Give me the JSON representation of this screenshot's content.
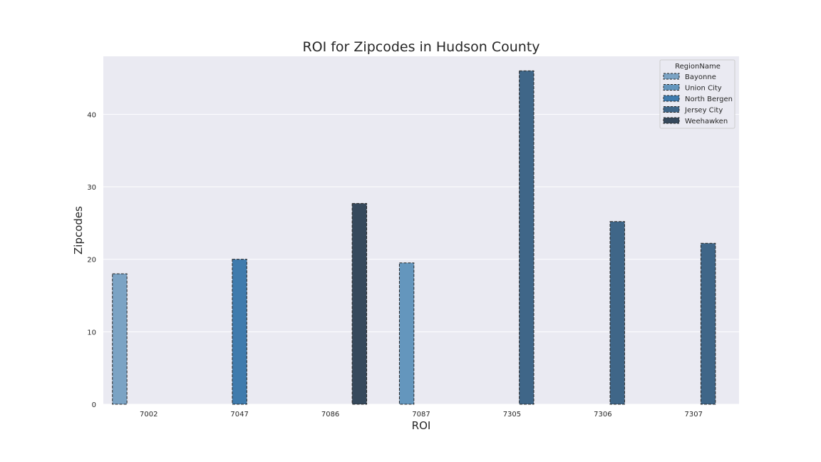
{
  "chart_data": {
    "type": "bar",
    "title": "ROI for Zipcodes in Hudson County",
    "xlabel": "ROI",
    "ylabel": "Zipcodes",
    "categories": [
      "7002",
      "7047",
      "7086",
      "7087",
      "7305",
      "7306",
      "7307"
    ],
    "ylim": [
      0,
      48
    ],
    "yticks": [
      0,
      10,
      20,
      30,
      40
    ],
    "grid": true,
    "legend_title": "RegionName",
    "legend_position": "top-right",
    "series": [
      {
        "name": "Bayonne",
        "color": "#7ba3c4",
        "values": [
          18.0,
          null,
          null,
          null,
          null,
          null,
          null
        ]
      },
      {
        "name": "Union City",
        "color": "#6496bd",
        "values": [
          null,
          null,
          null,
          19.5,
          null,
          null,
          null
        ]
      },
      {
        "name": "North Bergen",
        "color": "#3f7bad",
        "values": [
          null,
          20.0,
          null,
          null,
          null,
          null,
          null
        ]
      },
      {
        "name": "Jersey City",
        "color": "#3f6688",
        "values": [
          null,
          null,
          null,
          null,
          46.0,
          25.2,
          22.2
        ]
      },
      {
        "name": "Weehawken",
        "color": "#36495c",
        "values": [
          null,
          null,
          27.7,
          null,
          null,
          null,
          null
        ]
      }
    ]
  }
}
